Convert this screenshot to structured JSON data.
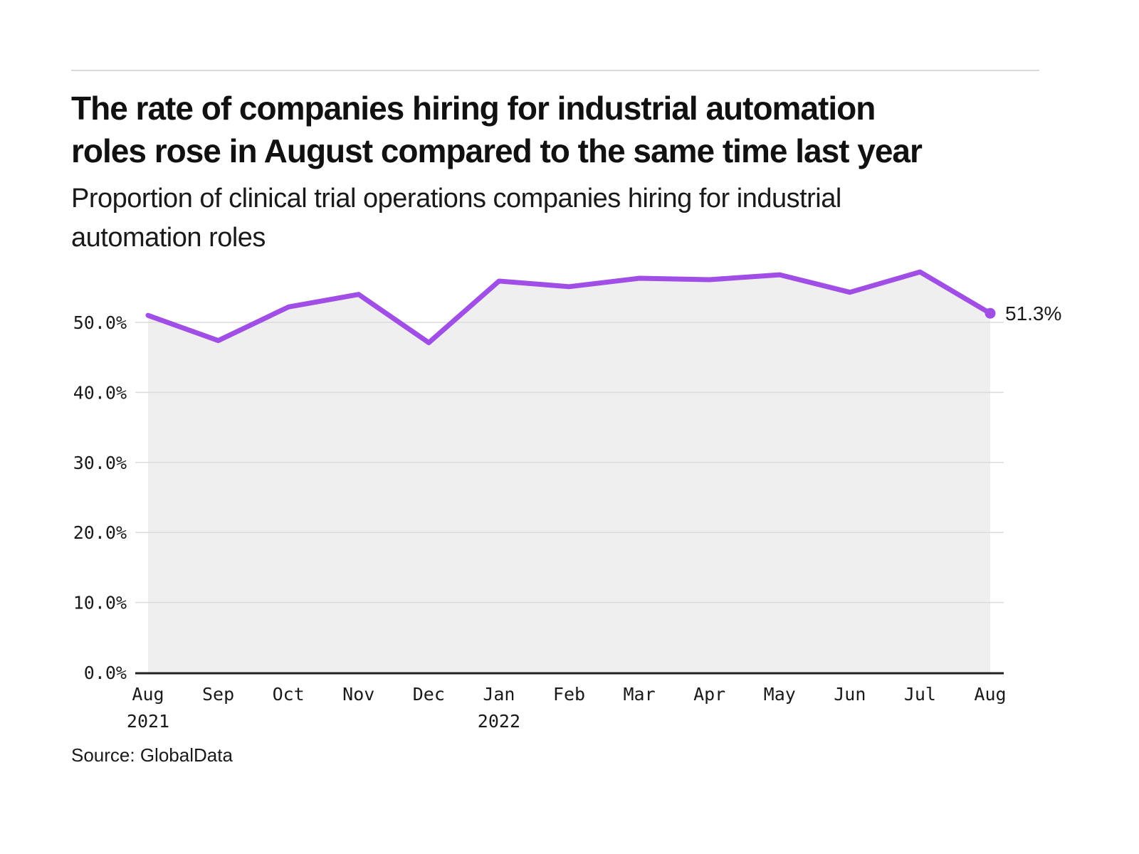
{
  "page": {
    "title_lines": [
      "The rate of companies hiring for industrial automation",
      "roles rose in August compared to the same time last year"
    ],
    "subtitle_lines": [
      "Proportion of clinical trial operations companies hiring for industrial",
      "automation roles"
    ],
    "source": "Source: GlobalData"
  },
  "colors": {
    "line": "#a04ee6",
    "area": "#efefef",
    "grid": "#dbdbdb",
    "axis": "#202020",
    "text": "#1a1a1a",
    "rule": "#dadada"
  },
  "chart_data": {
    "type": "area",
    "title": "The rate of companies hiring for industrial automation roles rose in August compared to the same time last year",
    "subtitle": "Proportion of clinical trial operations companies hiring for industrial automation roles",
    "series_name": "Proportion of clinical trial operations companies hiring for industrial automation roles",
    "categories": [
      "Aug 2021",
      "Sep 2021",
      "Oct 2021",
      "Nov 2021",
      "Dec 2021",
      "Jan 2022",
      "Feb 2022",
      "Mar 2022",
      "Apr 2022",
      "May 2022",
      "Jun 2022",
      "Jul 2022",
      "Aug 2022"
    ],
    "values": [
      51.0,
      47.4,
      52.2,
      54.0,
      47.1,
      55.9,
      55.1,
      56.3,
      56.1,
      56.8,
      54.3,
      57.2,
      51.3
    ],
    "x_ticks": [
      {
        "label": "Aug",
        "sub": "2021"
      },
      {
        "label": "Sep"
      },
      {
        "label": "Oct"
      },
      {
        "label": "Nov"
      },
      {
        "label": "Dec"
      },
      {
        "label": "Jan",
        "sub": "2022"
      },
      {
        "label": "Feb"
      },
      {
        "label": "Mar"
      },
      {
        "label": "Apr"
      },
      {
        "label": "May"
      },
      {
        "label": "Jun"
      },
      {
        "label": "Jul"
      },
      {
        "label": "Aug"
      }
    ],
    "y_ticks": [
      {
        "value": 0,
        "label": "0.0%"
      },
      {
        "value": 10,
        "label": "10.0%"
      },
      {
        "value": 20,
        "label": "20.0%"
      },
      {
        "value": 30,
        "label": "30.0%"
      },
      {
        "value": 40,
        "label": "40.0%"
      },
      {
        "value": 50,
        "label": "50.0%"
      }
    ],
    "end_label": "51.3%",
    "xlabel": "",
    "ylabel": "",
    "ylim": [
      0,
      59
    ],
    "grid": true,
    "legend_position": "none"
  }
}
